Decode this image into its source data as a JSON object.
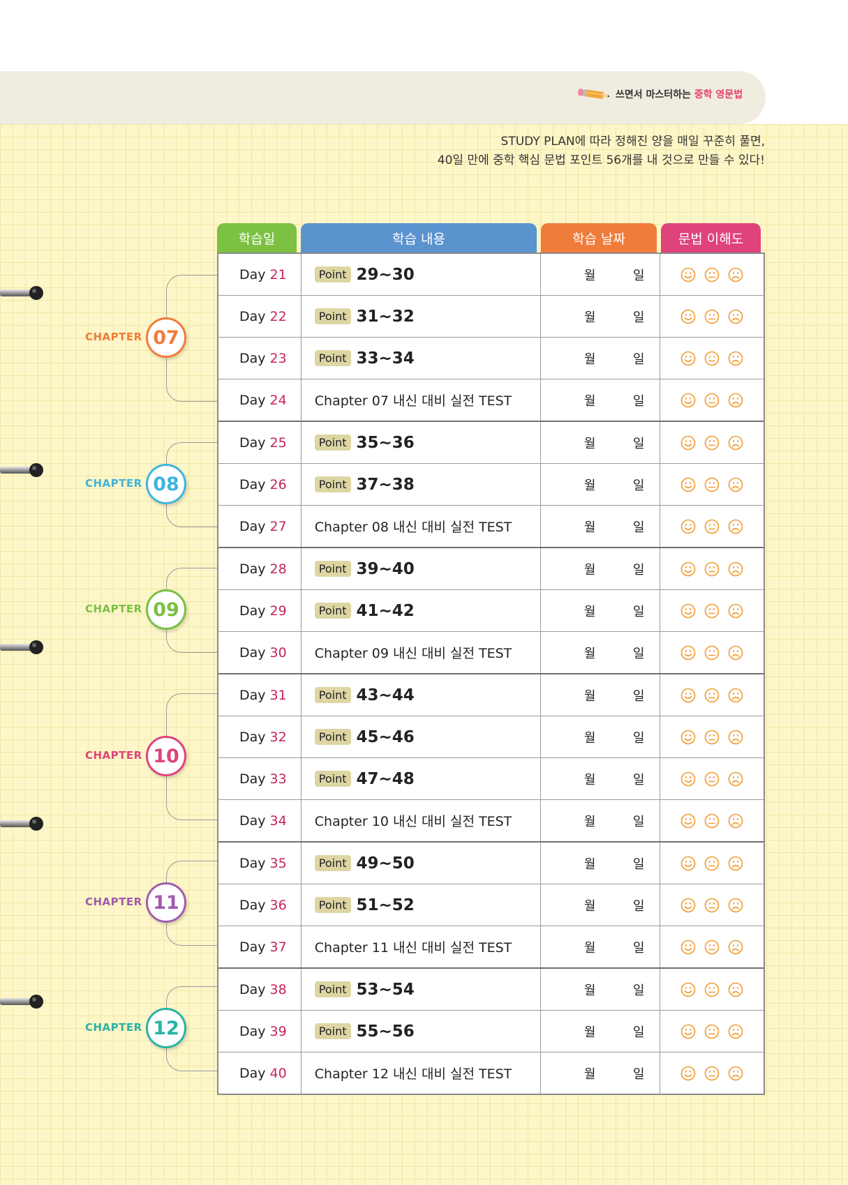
{
  "brand": {
    "prefix": "쓰면서 마스터하는 ",
    "highlight": "중학 영문법"
  },
  "intro": {
    "line1": "STUDY PLAN에 따라 정해진 양을 매일 꾸준히 풀면,",
    "line2": "40일 만에 중학 핵심 문법 포인트 56개를 내 것으로 만들 수 있다!"
  },
  "headers": {
    "day": "학습일",
    "content": "학습 내용",
    "date": "학습 날짜",
    "understanding": "문법 이해도"
  },
  "colors": {
    "day": "#7cc142",
    "content": "#5b93cf",
    "date": "#f07c3b",
    "understanding": "#e0437c",
    "face": "#f29a2e"
  },
  "chapter_word": "CHAPTER",
  "chapters": [
    {
      "num": "07",
      "color": "#f07c3b"
    },
    {
      "num": "08",
      "color": "#3fb4dc"
    },
    {
      "num": "09",
      "color": "#7ac043"
    },
    {
      "num": "10",
      "color": "#e0437c"
    },
    {
      "num": "11",
      "color": "#a15bb0"
    },
    {
      "num": "12",
      "color": "#2ab3a6"
    }
  ],
  "labels": {
    "day": "Day",
    "point": "Point",
    "month": "월",
    "day_unit": "일"
  },
  "rows": [
    {
      "day": "21",
      "type": "point",
      "text": "29~30"
    },
    {
      "day": "22",
      "type": "point",
      "text": "31~32"
    },
    {
      "day": "23",
      "type": "point",
      "text": "33~34"
    },
    {
      "day": "24",
      "type": "test",
      "text": "Chapter 07  내신 대비 실전 TEST"
    },
    {
      "day": "25",
      "type": "point",
      "text": "35~36"
    },
    {
      "day": "26",
      "type": "point",
      "text": "37~38"
    },
    {
      "day": "27",
      "type": "test",
      "text": "Chapter 08  내신 대비 실전 TEST"
    },
    {
      "day": "28",
      "type": "point",
      "text": "39~40"
    },
    {
      "day": "29",
      "type": "point",
      "text": "41~42"
    },
    {
      "day": "30",
      "type": "test",
      "text": "Chapter 09  내신 대비 실전 TEST"
    },
    {
      "day": "31",
      "type": "point",
      "text": "43~44"
    },
    {
      "day": "32",
      "type": "point",
      "text": "45~46"
    },
    {
      "day": "33",
      "type": "point",
      "text": "47~48"
    },
    {
      "day": "34",
      "type": "test",
      "text": "Chapter 10  내신 대비 실전 TEST"
    },
    {
      "day": "35",
      "type": "point",
      "text": "49~50"
    },
    {
      "day": "36",
      "type": "point",
      "text": "51~52"
    },
    {
      "day": "37",
      "type": "test",
      "text": "Chapter 11  내신 대비 실전 TEST"
    },
    {
      "day": "38",
      "type": "point",
      "text": "53~54"
    },
    {
      "day": "39",
      "type": "point",
      "text": "55~56"
    },
    {
      "day": "40",
      "type": "test",
      "text": "Chapter 12  내신 대비 실전 TEST"
    }
  ]
}
